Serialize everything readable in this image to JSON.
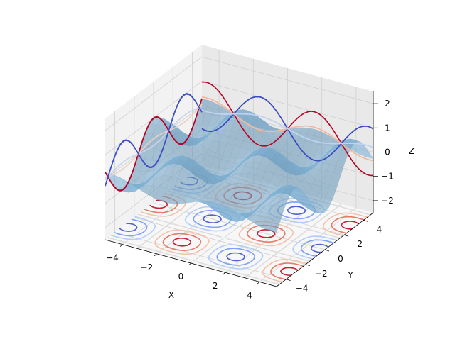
{
  "chart_data": {
    "type": "3d-surface-with-contours",
    "title": "",
    "xlabel": "X",
    "ylabel": "Y",
    "zlabel": "Z",
    "xlim": [
      -5,
      5
    ],
    "ylim": [
      -5,
      5
    ],
    "zlim": [
      -2.5,
      2.5
    ],
    "x_ticks": [
      "−4",
      "−2",
      "0",
      "2",
      "4"
    ],
    "y_ticks": [
      "−4",
      "−2",
      "0",
      "2",
      "4"
    ],
    "z_ticks": [
      "−2",
      "−1",
      "0",
      "1",
      "2"
    ],
    "grid": true,
    "surface": {
      "function": "sin(x) * cos(y)",
      "x_range": [
        -5,
        5
      ],
      "y_range": [
        -5,
        5
      ],
      "color": "#7fb2d6",
      "alpha": 0.6
    },
    "contour_sets": [
      {
        "projection": "z",
        "offset": -2.5,
        "colormap": "coolwarm"
      },
      {
        "projection": "x",
        "offset": -5,
        "colormap": "coolwarm"
      },
      {
        "projection": "y",
        "offset": 5,
        "colormap": "coolwarm"
      }
    ],
    "pane_color": "#f2f2f2",
    "colormap_stops": [
      "#3b4cc0",
      "#7396f5",
      "#b0cbfc",
      "#dddddd",
      "#f6bfa6",
      "#e26952",
      "#b40426"
    ]
  }
}
